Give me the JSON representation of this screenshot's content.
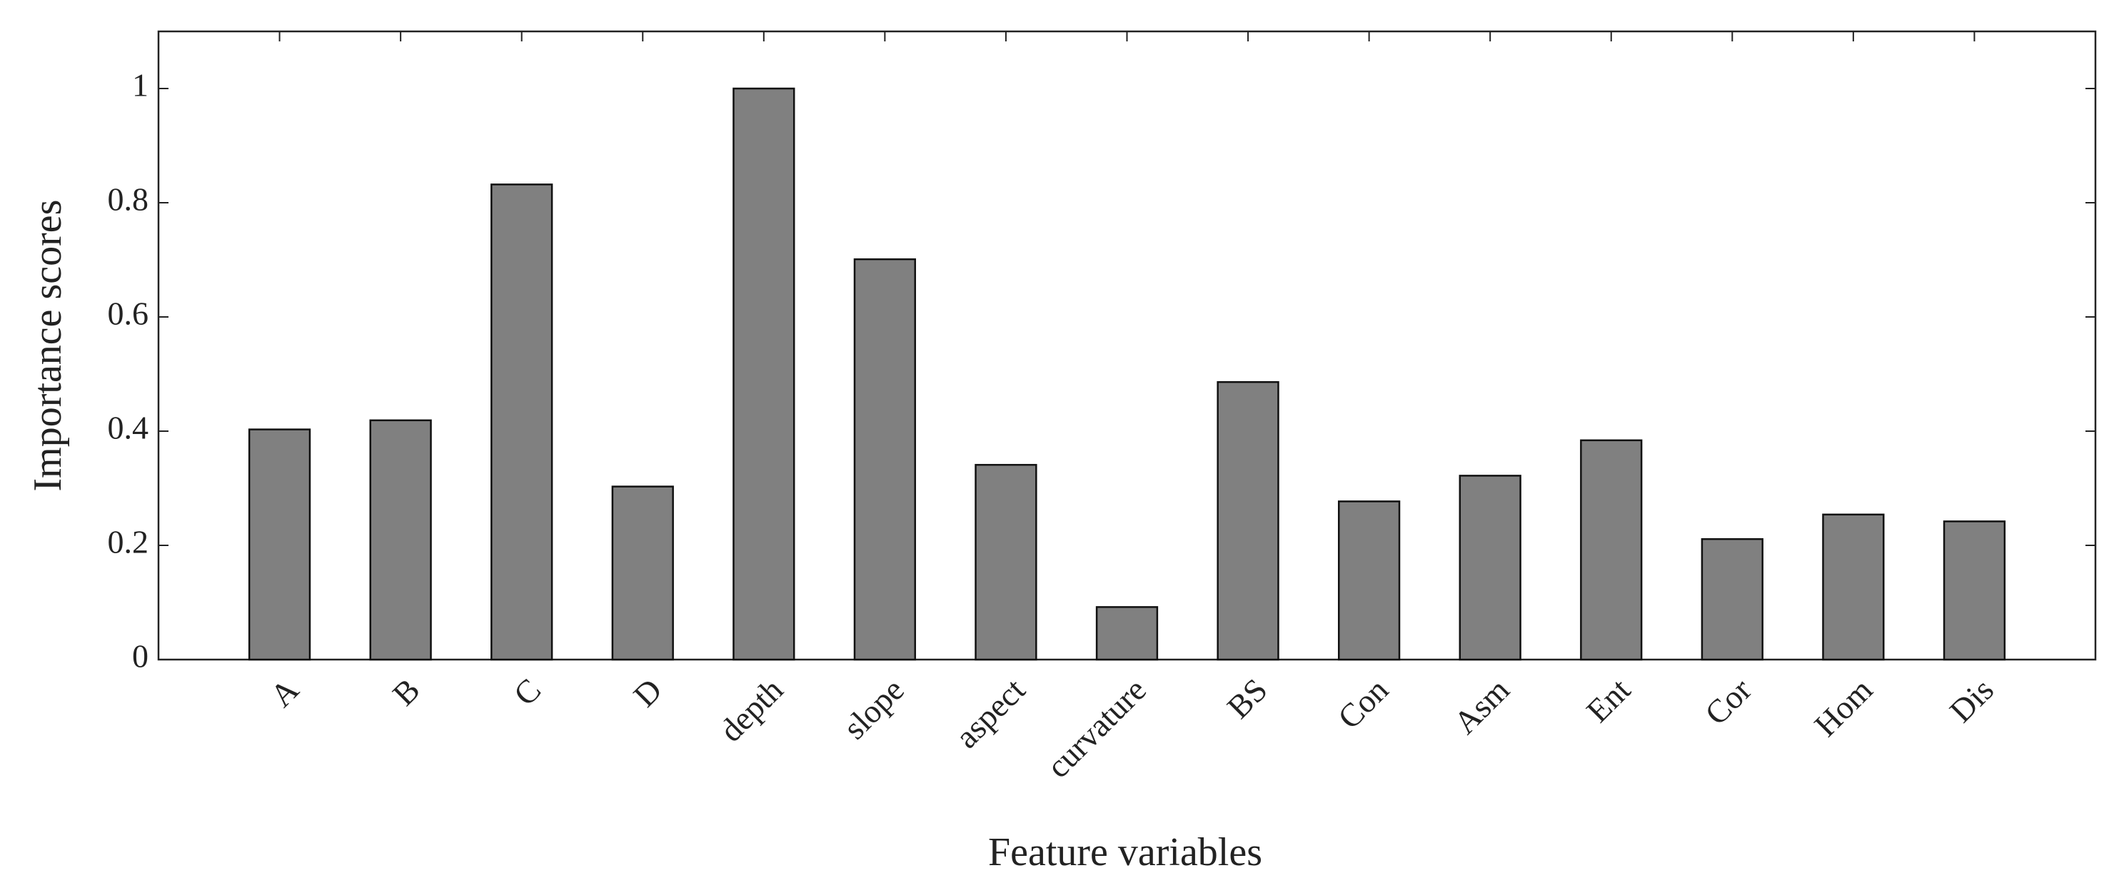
{
  "chart_data": {
    "type": "bar",
    "xlabel": "Feature variables",
    "ylabel": "Importance scores",
    "categories": [
      "A",
      "B",
      "C",
      "D",
      "depth",
      "slope",
      "aspect",
      "curvature",
      "BS",
      "Con",
      "Asm",
      "Ent",
      "Cor",
      "Hom",
      "Dis"
    ],
    "values": [
      0.403,
      0.419,
      0.832,
      0.303,
      1.0,
      0.701,
      0.341,
      0.092,
      0.486,
      0.277,
      0.322,
      0.384,
      0.211,
      0.254,
      0.242
    ],
    "color": "#808080",
    "ylim": [
      0,
      1.1
    ],
    "yticks": [
      0,
      0.2,
      0.4,
      0.6,
      0.8,
      1
    ]
  }
}
